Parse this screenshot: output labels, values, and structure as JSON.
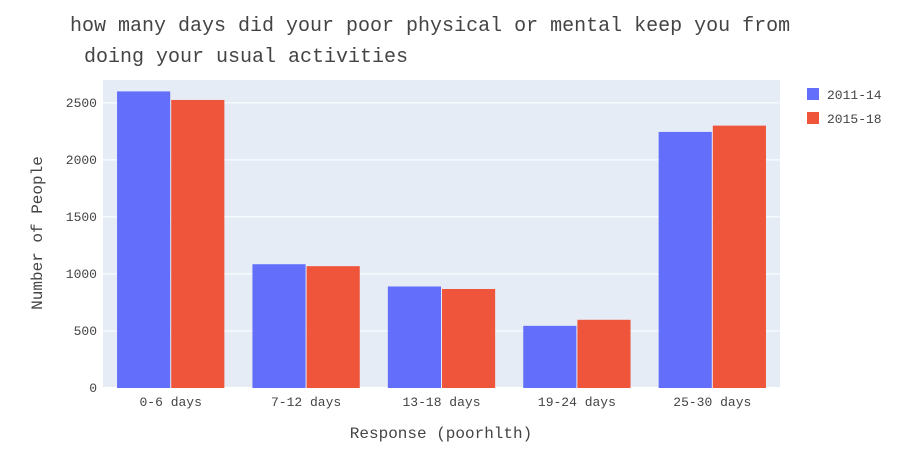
{
  "chart_data": {
    "type": "bar",
    "title_lines": [
      "how many days did your poor physical or mental keep you from",
      "doing your usual activities"
    ],
    "xlabel": "Response (poorhlth)",
    "ylabel": "Number of People",
    "categories": [
      "0-6 days",
      "7-12 days",
      "13-18 days",
      "19-24 days",
      "25-30 days"
    ],
    "series": [
      {
        "name": "2011-14",
        "color": "#636efa",
        "values": [
          2600,
          1085,
          890,
          545,
          2245
        ]
      },
      {
        "name": "2015-18",
        "color": "#ef553b",
        "values": [
          2525,
          1068,
          868,
          598,
          2300
        ]
      }
    ],
    "ylim": [
      0,
      2700
    ],
    "yticks": [
      0,
      500,
      1000,
      1500,
      2000,
      2500
    ],
    "grid": true,
    "legend_position": "top-right",
    "plot_background": "#e5ecf6"
  }
}
